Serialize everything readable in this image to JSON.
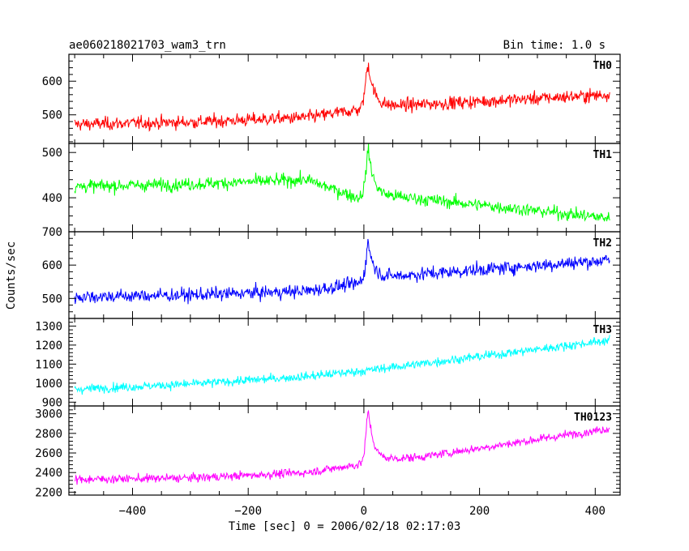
{
  "header": {
    "title": "ae060218021703_wam3_trn",
    "bin_time": "Bin time: 1.0 s"
  },
  "axes": {
    "ylabel": "Counts/sec",
    "xlabel": "Time [sec] 0 = 2006/02/18 02:17:03"
  },
  "chart_data": {
    "type": "line",
    "shared_x": {
      "min": -510,
      "max": 443,
      "data_start": -500,
      "data_end": 425,
      "step": 1,
      "ticks": [
        -400,
        -200,
        0,
        200,
        400
      ],
      "tick_labels": [
        "−400",
        "−200",
        "0",
        "200",
        "400"
      ]
    },
    "panels": [
      {
        "label": "TH0",
        "color": "#ff0000",
        "ylim": [
          415,
          680
        ],
        "yticks": [
          500,
          600
        ],
        "ytick_labels": [
          "500",
          "600"
        ],
        "model": {
          "baseline": [
            [
              -500,
              472
            ],
            [
              -300,
              478
            ],
            [
              -100,
              492
            ],
            [
              -10,
              515
            ],
            [
              0,
              522
            ],
            [
              425,
              560
            ]
          ],
          "noise": 25,
          "peak": {
            "t": 8,
            "amp": 125,
            "rise": 5,
            "decay": 10
          }
        }
      },
      {
        "label": "TH1",
        "color": "#00ff00",
        "ylim": [
          325,
          520
        ],
        "yticks": [
          400,
          500
        ],
        "ytick_labels": [
          "400",
          "500"
        ],
        "model": {
          "baseline": [
            [
              -500,
              425
            ],
            [
              -300,
              430
            ],
            [
              -100,
              440
            ],
            [
              -10,
              400
            ],
            [
              0,
              410
            ],
            [
              425,
              355
            ]
          ],
          "noise": 18,
          "peak": {
            "t": 8,
            "amp": 95,
            "rise": 4,
            "decay": 9
          }
        }
      },
      {
        "label": "TH2",
        "color": "#0000ff",
        "ylim": [
          440,
          700
        ],
        "yticks": [
          500,
          600,
          700
        ],
        "ytick_labels": [
          "500",
          "600",
          "700"
        ],
        "model": {
          "baseline": [
            [
              -500,
              505
            ],
            [
              -300,
              510
            ],
            [
              -100,
              522
            ],
            [
              -10,
              545
            ],
            [
              0,
              560
            ],
            [
              425,
              615
            ]
          ],
          "noise": 26,
          "peak": {
            "t": 8,
            "amp": 105,
            "rise": 4,
            "decay": 9
          }
        }
      },
      {
        "label": "TH3",
        "color": "#00ffff",
        "ylim": [
          880,
          1340
        ],
        "yticks": [
          900,
          1000,
          1100,
          1200,
          1300
        ],
        "ytick_labels": [
          "900",
          "1000",
          "1100",
          "1200",
          "1300"
        ],
        "model": {
          "baseline": [
            [
              -500,
              968
            ],
            [
              -300,
              995
            ],
            [
              -100,
              1035
            ],
            [
              0,
              1065
            ],
            [
              200,
              1140
            ],
            [
              425,
              1225
            ]
          ],
          "noise": 30,
          "peak": {
            "t": 8,
            "amp": 0,
            "rise": 4,
            "decay": 9
          }
        }
      },
      {
        "label": "TH0123",
        "color": "#ff00ff",
        "ylim": [
          2170,
          3080
        ],
        "yticks": [
          2200,
          2400,
          2600,
          2800,
          3000
        ],
        "ytick_labels": [
          "2200",
          "2400",
          "2600",
          "2800",
          "3000"
        ],
        "model": {
          "baseline": [
            [
              -500,
              2330
            ],
            [
              -300,
              2345
            ],
            [
              -100,
              2400
            ],
            [
              -10,
              2480
            ],
            [
              0,
              2520
            ],
            [
              100,
              2560
            ],
            [
              425,
              2850
            ]
          ],
          "noise": 55,
          "peak": {
            "t": 8,
            "amp": 500,
            "rise": 4,
            "decay": 9
          }
        }
      }
    ]
  }
}
